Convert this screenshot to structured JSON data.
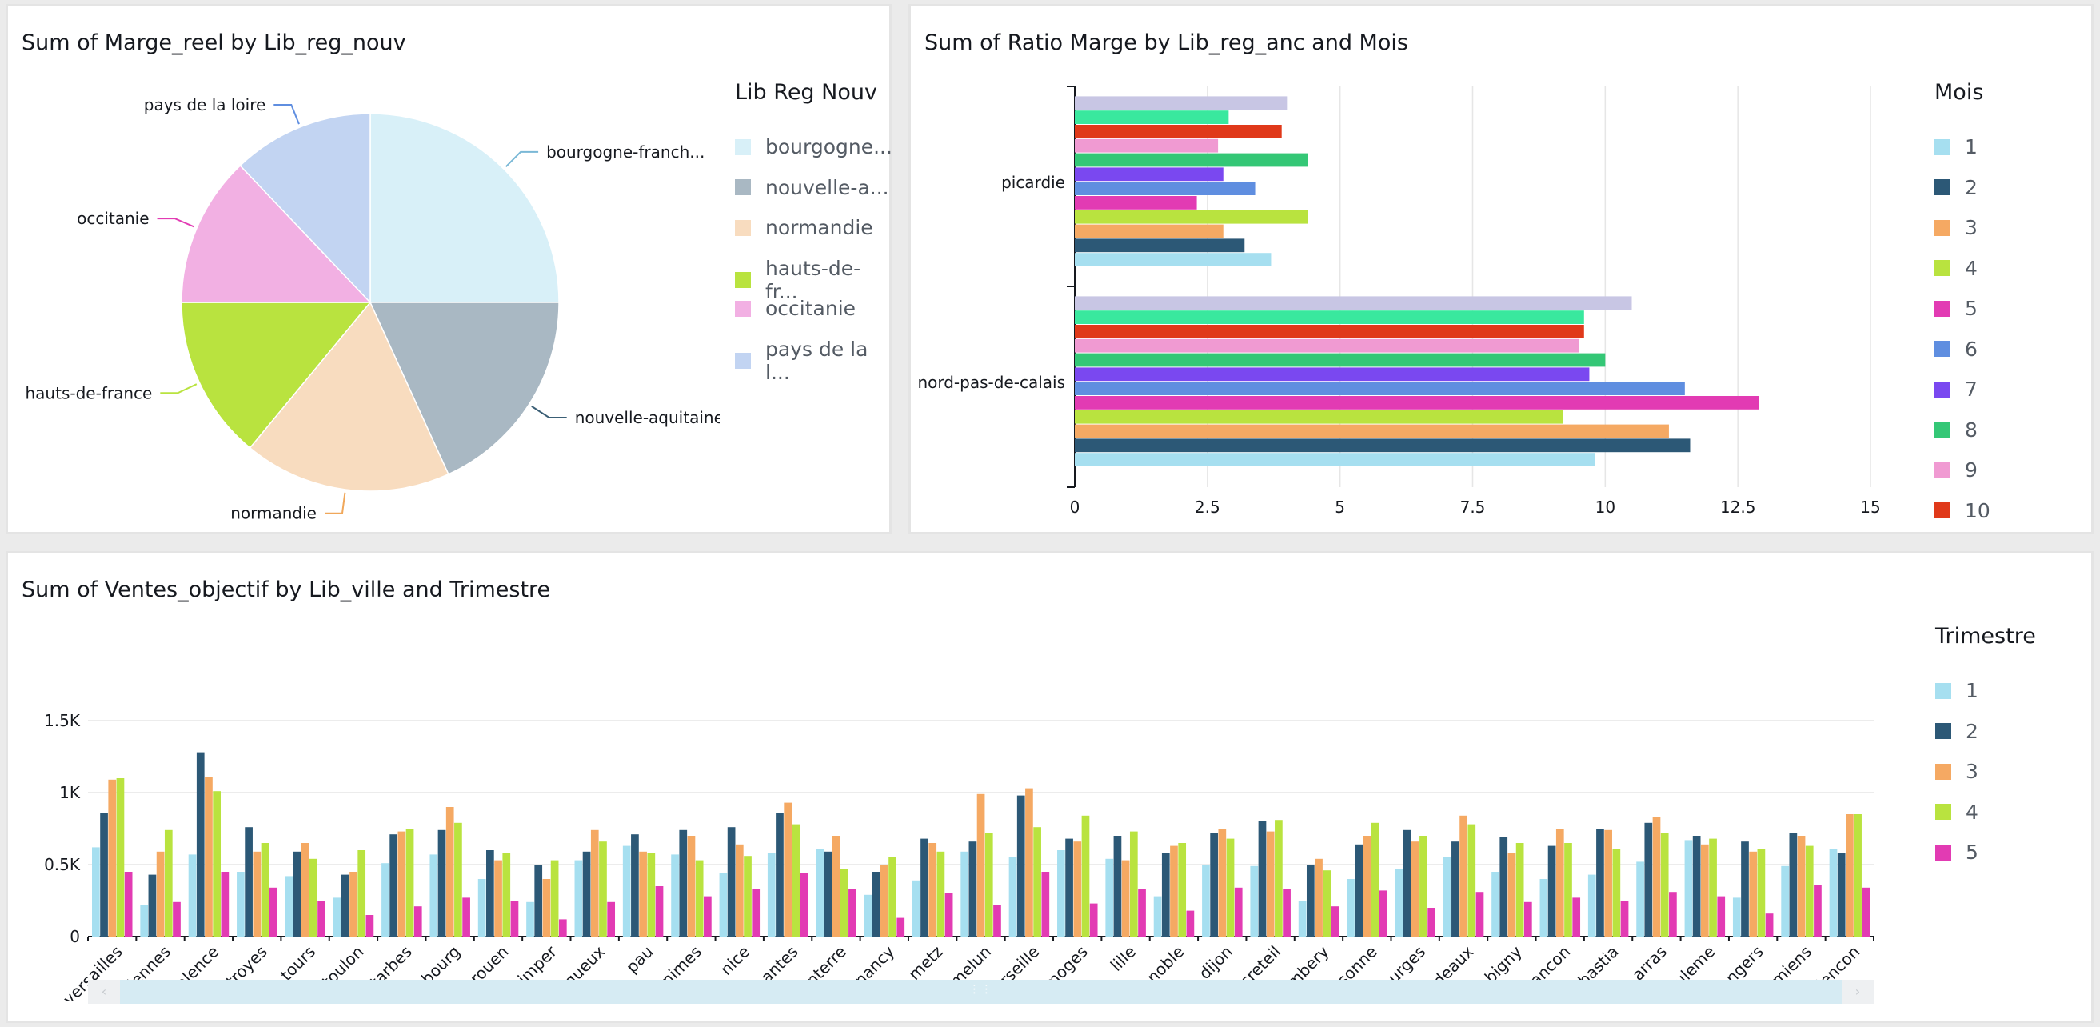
{
  "colors": {
    "pie": [
      "#d8f0f8",
      "#a9b8c3",
      "#f8dcbf",
      "#b9e33f",
      "#f2b0e3",
      "#c2d4f2"
    ],
    "series": [
      "#a6dff0",
      "#2c5876",
      "#f5a963",
      "#b9e33f",
      "#e23bb3",
      "#5f8ee0",
      "#7a48f0",
      "#34c776",
      "#f09ad2",
      "#e0391a",
      "#39e89e",
      "#c8c6e4"
    ],
    "accent_leader": [
      "#7ab8d6",
      "#3a5e75",
      "#f0a75a",
      "#b9e33f",
      "#e23bb3",
      "#5f8ee0"
    ]
  },
  "panels": {
    "pie": {
      "title": "Sum of Marge_reel by Lib_reg_nouv",
      "legend_title": "Lib Reg Nouv"
    },
    "hbar": {
      "title": "Sum of Ratio Marge by Lib_reg_anc and Mois",
      "legend_title": "Mois"
    },
    "vbar": {
      "title": "Sum of Ventes_objectif by Lib_ville and Trimestre",
      "legend_title": "Trimestre"
    }
  },
  "chart_data": [
    {
      "type": "pie",
      "title": "Sum of Marge_reel by Lib_reg_nouv",
      "legend_title": "Lib Reg Nouv",
      "categories": [
        "bourgogne-franche-comte",
        "nouvelle-aquitaine",
        "normandie",
        "hauts-de-france",
        "occitanie",
        "pays de la loire"
      ],
      "display_labels": [
        "bourgogne-franch...",
        "nouvelle-aquitaine",
        "normandie",
        "hauts-de-france",
        "occitanie",
        "pays de la loire"
      ],
      "legend_labels": [
        "bourgogne...",
        "nouvelle-a...",
        "normandie",
        "hauts-de-fr...",
        "occitanie",
        "pays de la l..."
      ],
      "values": [
        25.0,
        18.2,
        17.8,
        14.0,
        12.9,
        12.1
      ]
    },
    {
      "type": "bar",
      "orientation": "horizontal",
      "title": "Sum of Ratio Marge by Lib_reg_anc and Mois",
      "legend_title": "Mois",
      "categories": [
        "picardie",
        "nord-pas-de-calais"
      ],
      "xlim": [
        0,
        15
      ],
      "xticks": [
        "0",
        "2.5",
        "5",
        "7.5",
        "10",
        "12.5",
        "15"
      ],
      "legend_names": [
        "1",
        "2",
        "3",
        "4",
        "5",
        "6",
        "7",
        "8",
        "9",
        "10"
      ],
      "series": [
        {
          "name": "1",
          "values": [
            3.7,
            9.8
          ]
        },
        {
          "name": "2",
          "values": [
            3.2,
            11.6
          ]
        },
        {
          "name": "3",
          "values": [
            2.8,
            11.2
          ]
        },
        {
          "name": "4",
          "values": [
            4.4,
            9.2
          ]
        },
        {
          "name": "5",
          "values": [
            2.3,
            12.9
          ]
        },
        {
          "name": "6",
          "values": [
            3.4,
            11.5
          ]
        },
        {
          "name": "7",
          "values": [
            2.8,
            9.7
          ]
        },
        {
          "name": "8",
          "values": [
            4.4,
            10.0
          ]
        },
        {
          "name": "9",
          "values": [
            2.7,
            9.5
          ]
        },
        {
          "name": "10",
          "values": [
            3.9,
            9.6
          ]
        },
        {
          "values": [
            2.9,
            9.6
          ]
        },
        {
          "values": [
            4.0,
            10.5
          ]
        }
      ]
    },
    {
      "type": "bar",
      "title": "Sum of Ventes_objectif by Lib_ville and Trimestre",
      "legend_title": "Trimestre",
      "ylim": [
        0,
        1500
      ],
      "yticks": [
        "0",
        "0.5K",
        "1K",
        "1.5K"
      ],
      "categories": [
        "versailles",
        "valenciennes",
        "valence",
        "troyes",
        "tours",
        "toulon",
        "tarbes",
        "strasbourg",
        "rouen",
        "quimper",
        "perigueux",
        "pau",
        "nimes",
        "nice",
        "nantes",
        "nanterre",
        "nancy",
        "metz",
        "melun",
        "marseille",
        "limoges",
        "lille",
        "grenoble",
        "dijon",
        "creteil",
        "chambery",
        "carcassonne",
        "bourges",
        "bordeaux",
        "bobigny",
        "besancon",
        "bastia",
        "arras",
        "angouleme",
        "angers",
        "amiens",
        "alencon"
      ],
      "series": [
        {
          "name": "1",
          "values": [
            620,
            220,
            570,
            450,
            420,
            270,
            510,
            570,
            400,
            240,
            530,
            630,
            570,
            440,
            580,
            610,
            290,
            390,
            590,
            550,
            600,
            540,
            280,
            500,
            490,
            250,
            400,
            470,
            550,
            450,
            400,
            430,
            520,
            670,
            270,
            490,
            610
          ]
        },
        {
          "name": "2",
          "values": [
            860,
            430,
            1280,
            760,
            590,
            430,
            710,
            740,
            600,
            500,
            590,
            710,
            740,
            760,
            860,
            590,
            450,
            680,
            660,
            980,
            680,
            700,
            580,
            720,
            800,
            500,
            640,
            740,
            660,
            690,
            630,
            750,
            790,
            700,
            660,
            720,
            580
          ]
        },
        {
          "name": "3",
          "values": [
            1090,
            590,
            1110,
            590,
            650,
            450,
            730,
            900,
            530,
            400,
            740,
            590,
            700,
            640,
            930,
            700,
            500,
            650,
            990,
            1030,
            660,
            530,
            630,
            750,
            730,
            540,
            700,
            660,
            840,
            580,
            750,
            740,
            830,
            640,
            590,
            700,
            850
          ]
        },
        {
          "name": "4",
          "values": [
            1100,
            740,
            1010,
            650,
            540,
            600,
            750,
            790,
            580,
            530,
            660,
            580,
            530,
            560,
            780,
            470,
            550,
            590,
            720,
            760,
            840,
            730,
            650,
            680,
            810,
            460,
            790,
            700,
            780,
            650,
            650,
            610,
            720,
            680,
            610,
            630,
            850
          ]
        },
        {
          "name": "5",
          "values": [
            450,
            240,
            450,
            340,
            250,
            150,
            210,
            270,
            250,
            120,
            240,
            350,
            280,
            330,
            440,
            330,
            130,
            300,
            220,
            450,
            230,
            330,
            180,
            340,
            330,
            210,
            320,
            200,
            310,
            240,
            270,
            250,
            310,
            280,
            160,
            360,
            340
          ]
        }
      ]
    }
  ]
}
